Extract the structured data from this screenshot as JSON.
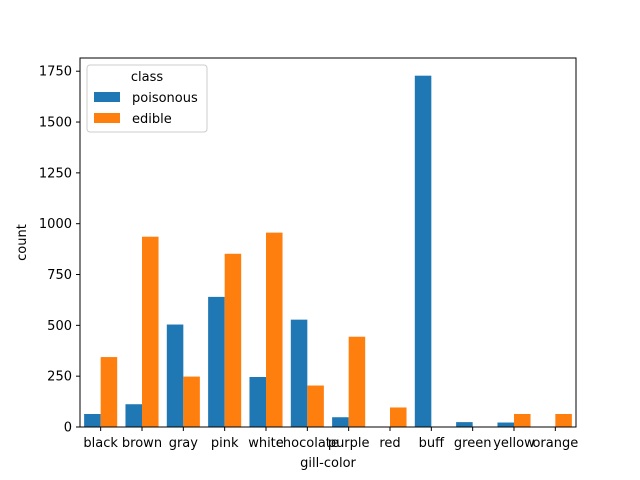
{
  "chart_data": {
    "type": "bar",
    "title": "",
    "xlabel": "gill-color",
    "ylabel": "count",
    "categories": [
      "black",
      "brown",
      "gray",
      "pink",
      "white",
      "chocolate",
      "purple",
      "red",
      "buff",
      "green",
      "yellow",
      "orange"
    ],
    "series": [
      {
        "name": "poisonous",
        "color": "#1f77b4",
        "values": [
          64,
          112,
          504,
          640,
          246,
          528,
          48,
          0,
          1728,
          24,
          22,
          0
        ]
      },
      {
        "name": "edible",
        "color": "#ff7f0e",
        "values": [
          344,
          936,
          248,
          852,
          956,
          204,
          444,
          96,
          0,
          0,
          64,
          64
        ]
      }
    ],
    "ylim": [
      0,
      1815
    ],
    "yticks": [
      0,
      250,
      500,
      750,
      1000,
      1250,
      1500,
      1750
    ],
    "legend": {
      "title": "class",
      "placement": "upper-left"
    },
    "grid": false
  }
}
